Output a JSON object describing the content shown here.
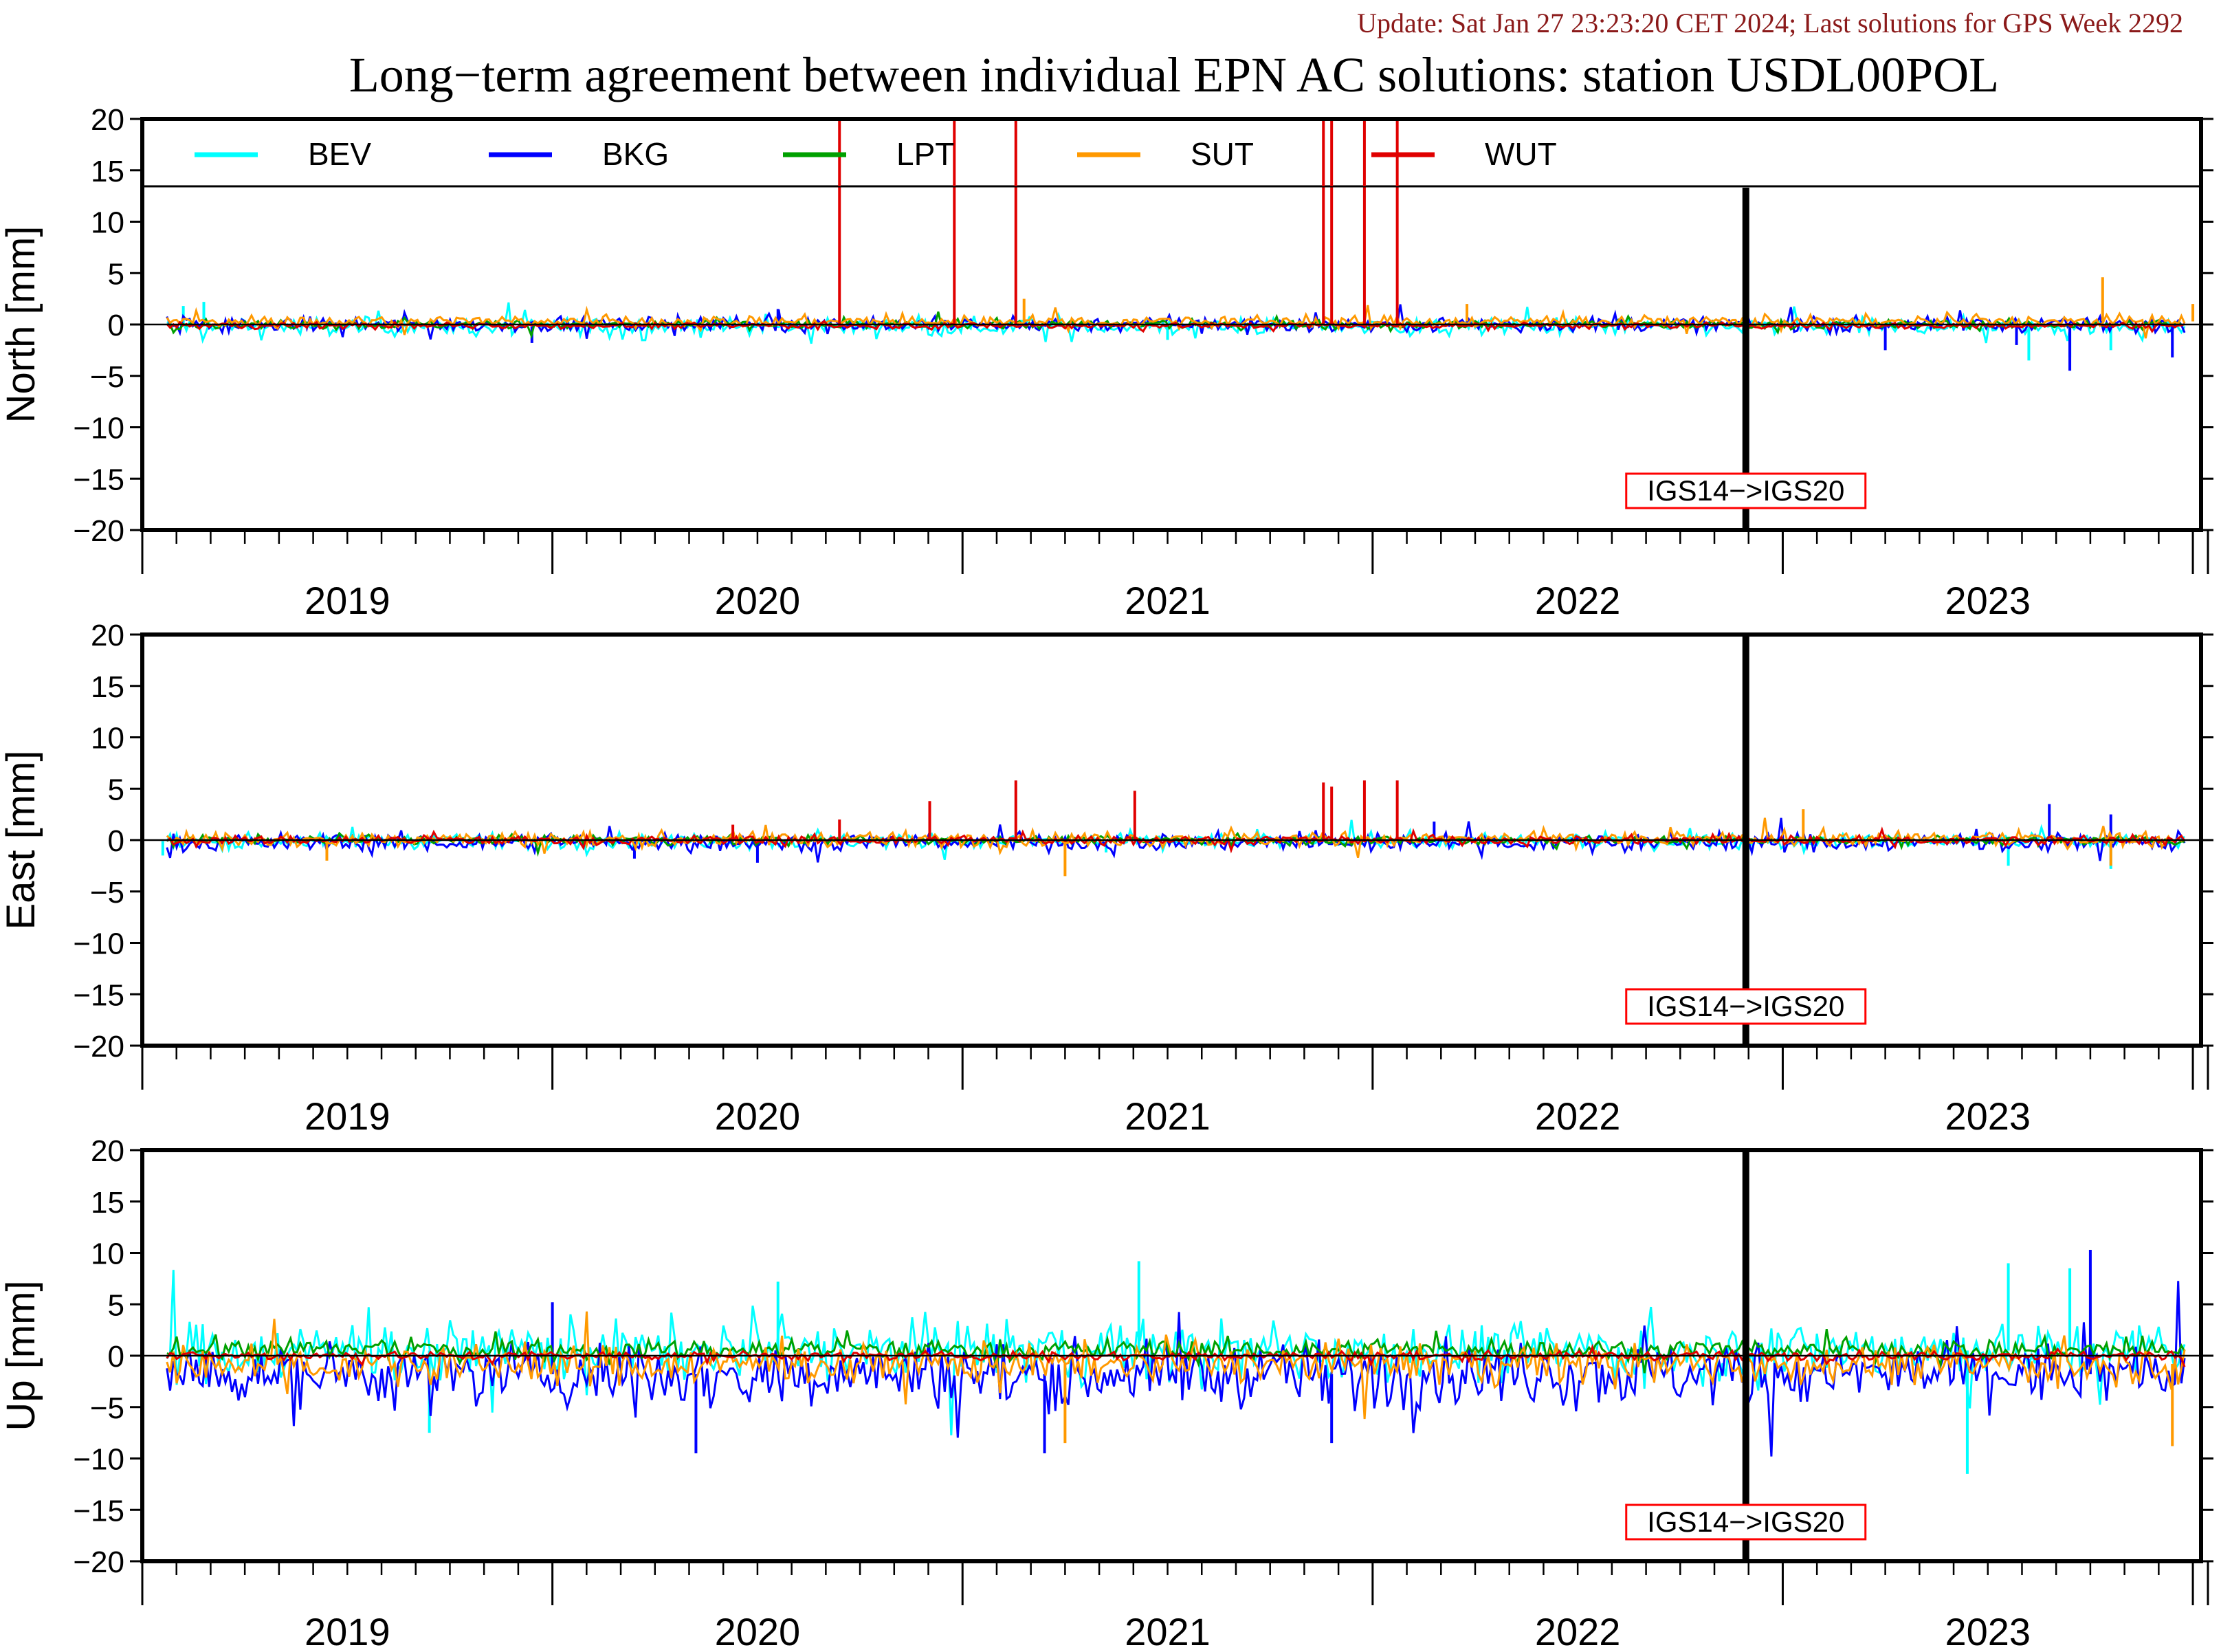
{
  "update_text": "Update: Sat Jan 27 23:23:20 CET 2024; Last solutions for GPS Week 2292",
  "title": "Long−term agreement between individual EPN AC solutions: station USDL00POL",
  "colors": {
    "update": "#8b1a1a",
    "BEV": "#00ffff",
    "BKG": "#0000ff",
    "LPT": "#00a000",
    "SUT": "#ff9900",
    "WUT": "#e00000",
    "annotation_border": "#ff0000"
  },
  "chart_data": {
    "type": "line",
    "x_axis": {
      "range": [
        2018.5,
        2023.52
      ],
      "year_labels": [
        "2019",
        "2020",
        "2021",
        "2022",
        "2023"
      ],
      "year_label_positions": [
        2019.0,
        2020.0,
        2021.0,
        2022.0,
        2023.0
      ]
    },
    "y_ticks": [
      20,
      15,
      10,
      5,
      0,
      -5,
      -10,
      -15,
      -20
    ],
    "y_tick_labels": [
      "20",
      "15",
      "10",
      "5",
      "0",
      "−5",
      "−10",
      "−15",
      "−20"
    ],
    "ylim": [
      -20,
      20
    ],
    "legend": {
      "placement": "top",
      "entries": [
        "BEV",
        "BKG",
        "LPT",
        "SUT",
        "WUT"
      ]
    },
    "reference_change": {
      "x": 2022.41,
      "label": "IGS14−>IGS20"
    },
    "panels": [
      {
        "ylabel": "North [mm]",
        "series": [
          {
            "name": "BEV",
            "noise": 0.6,
            "bias": -0.2,
            "spikes": [
              [
                2018.6,
                1.8
              ],
              [
                2018.65,
                2.2
              ],
              [
                2021.0,
                -1.5
              ],
              [
                2023.1,
                -3.5
              ],
              [
                2023.2,
                -3.2
              ],
              [
                2023.3,
                -2.5
              ]
            ]
          },
          {
            "name": "BKG",
            "noise": 0.5,
            "bias": 0.0,
            "spikes": [
              [
                2019.45,
                -1.8
              ],
              [
                2020.05,
                1.5
              ],
              [
                2022.75,
                -2.5
              ],
              [
                2023.07,
                -2.0
              ],
              [
                2023.2,
                -4.5
              ],
              [
                2023.45,
                -3.2
              ]
            ]
          },
          {
            "name": "LPT",
            "noise": 0.3,
            "bias": 0.0,
            "spikes": []
          },
          {
            "name": "SUT",
            "noise": 0.4,
            "bias": 0.3,
            "spikes": [
              [
                2020.65,
                2.5
              ],
              [
                2021.73,
                2.0
              ],
              [
                2023.28,
                4.6
              ],
              [
                2023.5,
                2.0
              ]
            ]
          },
          {
            "name": "WUT",
            "noise": 0.2,
            "bias": -0.1,
            "spikes": [
              [
                2020.2,
                20
              ],
              [
                2020.48,
                20
              ],
              [
                2020.63,
                20
              ],
              [
                2021.38,
                20
              ],
              [
                2021.4,
                20
              ],
              [
                2021.48,
                20
              ],
              [
                2021.56,
                20
              ]
            ]
          }
        ]
      },
      {
        "ylabel": "East [mm]",
        "series": [
          {
            "name": "BEV",
            "noise": 0.5,
            "bias": -0.1,
            "spikes": [
              [
                2018.55,
                -1.5
              ],
              [
                2020.85,
                -1.2
              ],
              [
                2023.05,
                -2.5
              ],
              [
                2023.3,
                -2.8
              ]
            ]
          },
          {
            "name": "BKG",
            "noise": 0.6,
            "bias": -0.2,
            "spikes": [
              [
                2019.7,
                -1.8
              ],
              [
                2020.0,
                -2.2
              ],
              [
                2021.65,
                1.8
              ],
              [
                2023.15,
                3.5
              ],
              [
                2023.3,
                2.5
              ]
            ]
          },
          {
            "name": "LPT",
            "noise": 0.3,
            "bias": 0.0,
            "spikes": []
          },
          {
            "name": "SUT",
            "noise": 0.5,
            "bias": 0.1,
            "spikes": [
              [
                2018.95,
                -2.0
              ],
              [
                2020.75,
                -3.5
              ],
              [
                2022.55,
                3.0
              ],
              [
                2023.3,
                -2.5
              ]
            ]
          },
          {
            "name": "WUT",
            "noise": 0.3,
            "bias": 0.0,
            "spikes": [
              [
                2019.94,
                1.5
              ],
              [
                2020.2,
                2.0
              ],
              [
                2020.42,
                3.8
              ],
              [
                2020.63,
                5.8
              ],
              [
                2020.92,
                4.8
              ],
              [
                2021.38,
                5.6
              ],
              [
                2021.4,
                5.2
              ],
              [
                2021.48,
                5.8
              ],
              [
                2021.56,
                5.8
              ]
            ]
          }
        ]
      },
      {
        "ylabel": "Up [mm]",
        "series": [
          {
            "name": "BEV",
            "noise": 2.0,
            "bias": 0.5,
            "spikes": [
              [
                2020.05,
                7.2
              ],
              [
                2020.93,
                9.2
              ],
              [
                2023.05,
                9.0
              ],
              [
                2023.2,
                8.5
              ],
              [
                2022.95,
                -11.5
              ],
              [
                2019.2,
                -7.5
              ]
            ]
          },
          {
            "name": "BKG",
            "noise": 2.2,
            "bias": -1.8,
            "spikes": [
              [
                2019.85,
                -9.5
              ],
              [
                2020.7,
                -9.5
              ],
              [
                2021.4,
                -8.5
              ],
              [
                2023.25,
                10.3
              ],
              [
                2019.5,
                5.2
              ]
            ]
          },
          {
            "name": "LPT",
            "noise": 0.7,
            "bias": 0.6,
            "spikes": []
          },
          {
            "name": "SUT",
            "noise": 1.3,
            "bias": -0.8,
            "spikes": [
              [
                2020.75,
                -8.5
              ],
              [
                2023.45,
                -8.8
              ]
            ]
          },
          {
            "name": "WUT",
            "noise": 0.3,
            "bias": 0.0,
            "spikes": []
          }
        ]
      }
    ]
  }
}
